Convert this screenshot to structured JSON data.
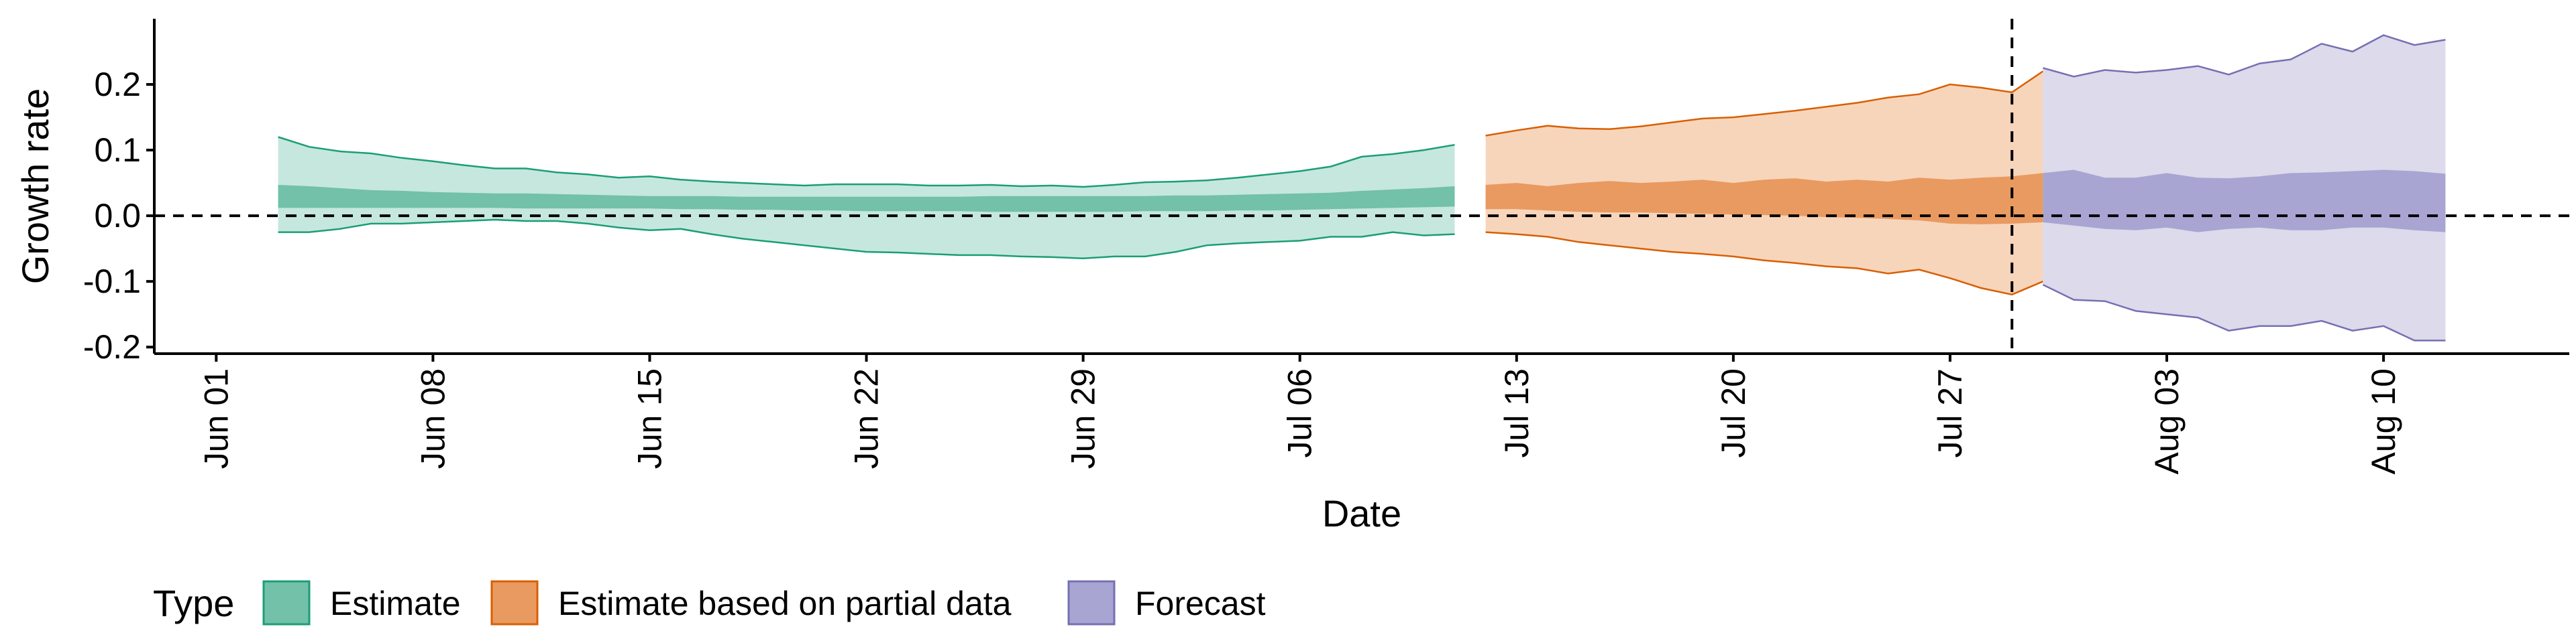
{
  "chart_data": {
    "type": "area",
    "xlabel": "Date",
    "ylabel": "Growth rate",
    "x_ticks": [
      "Jun 01",
      "Jun 08",
      "Jun 15",
      "Jun 22",
      "Jun 29",
      "Jul 06",
      "Jul 13",
      "Jul 20",
      "Jul 27",
      "Aug 03",
      "Aug 10"
    ],
    "y_ticks": [
      "-0.2",
      "-0.1",
      "0.0",
      "0.1",
      "0.2"
    ],
    "xlim": [
      "2020-05-30",
      "2020-08-16"
    ],
    "ylim": [
      -0.21,
      0.3
    ],
    "reference_lines": {
      "horizontal_y": 0.0,
      "vertical_date": "2020-07-29"
    },
    "legend": {
      "title": "Type",
      "position": "bottom-left",
      "items": [
        "Estimate",
        "Estimate based on partial data",
        "Forecast"
      ]
    },
    "colors": {
      "Estimate": {
        "outer": "#c6e7dd",
        "inner": "#72c1a8",
        "line": "#1b9e77"
      },
      "Estimate based on partial data": {
        "outer": "#f7d5bb",
        "inner": "#e99a60",
        "line": "#d95f02"
      },
      "Forecast": {
        "outer": "#dcdaeb",
        "inner": "#a9a5d2",
        "line": "#7570b3"
      }
    },
    "series": [
      {
        "name": "Estimate",
        "start_date": "2020-06-03",
        "outer_upper": [
          0.12,
          0.105,
          0.098,
          0.095,
          0.088,
          0.083,
          0.077,
          0.072,
          0.072,
          0.066,
          0.063,
          0.058,
          0.06,
          0.055,
          0.052,
          0.05,
          0.048,
          0.046,
          0.048,
          0.048,
          0.048,
          0.046,
          0.046,
          0.047,
          0.045,
          0.046,
          0.044,
          0.047,
          0.051,
          0.052,
          0.054,
          0.058,
          0.063,
          0.068,
          0.075,
          0.09,
          0.094,
          0.1,
          0.108
        ],
        "inner_upper": [
          0.047,
          0.045,
          0.042,
          0.039,
          0.038,
          0.036,
          0.035,
          0.034,
          0.034,
          0.033,
          0.032,
          0.031,
          0.03,
          0.03,
          0.03,
          0.029,
          0.029,
          0.029,
          0.029,
          0.029,
          0.029,
          0.029,
          0.029,
          0.03,
          0.03,
          0.03,
          0.03,
          0.03,
          0.03,
          0.031,
          0.031,
          0.032,
          0.033,
          0.034,
          0.035,
          0.038,
          0.04,
          0.042,
          0.045
        ],
        "inner_lower": [
          0.012,
          0.012,
          0.012,
          0.012,
          0.012,
          0.012,
          0.012,
          0.012,
          0.011,
          0.011,
          0.011,
          0.011,
          0.011,
          0.01,
          0.01,
          0.009,
          0.009,
          0.008,
          0.008,
          0.007,
          0.007,
          0.007,
          0.007,
          0.006,
          0.006,
          0.006,
          0.006,
          0.006,
          0.007,
          0.007,
          0.007,
          0.008,
          0.008,
          0.009,
          0.01,
          0.011,
          0.012,
          0.013,
          0.014
        ],
        "outer_lower": [
          -0.025,
          -0.025,
          -0.02,
          -0.012,
          -0.012,
          -0.01,
          -0.008,
          -0.006,
          -0.008,
          -0.008,
          -0.012,
          -0.018,
          -0.022,
          -0.02,
          -0.028,
          -0.035,
          -0.04,
          -0.045,
          -0.05,
          -0.055,
          -0.056,
          -0.058,
          -0.06,
          -0.06,
          -0.062,
          -0.063,
          -0.065,
          -0.062,
          -0.062,
          -0.055,
          -0.045,
          -0.042,
          -0.04,
          -0.038,
          -0.032,
          -0.032,
          -0.025,
          -0.03,
          -0.028
        ]
      },
      {
        "name": "Estimate based on partial data",
        "start_date": "2020-07-12",
        "outer_upper": [
          0.122,
          0.13,
          0.137,
          0.133,
          0.132,
          0.136,
          0.142,
          0.148,
          0.15,
          0.155,
          0.16,
          0.166,
          0.172,
          0.18,
          0.185,
          0.2,
          0.195,
          0.188,
          0.22
        ],
        "inner_upper": [
          0.047,
          0.05,
          0.045,
          0.05,
          0.053,
          0.05,
          0.052,
          0.055,
          0.05,
          0.055,
          0.057,
          0.052,
          0.055,
          0.052,
          0.058,
          0.055,
          0.058,
          0.06,
          0.065
        ],
        "inner_lower": [
          0.01,
          0.01,
          0.008,
          0.006,
          0.005,
          0.005,
          0.004,
          0.003,
          0.002,
          0.001,
          0.0,
          -0.002,
          -0.003,
          -0.005,
          -0.007,
          -0.012,
          -0.013,
          -0.012,
          -0.01
        ],
        "outer_lower": [
          -0.025,
          -0.028,
          -0.032,
          -0.04,
          -0.045,
          -0.05,
          -0.055,
          -0.058,
          -0.062,
          -0.068,
          -0.072,
          -0.077,
          -0.08,
          -0.088,
          -0.082,
          -0.095,
          -0.11,
          -0.12,
          -0.1
        ]
      },
      {
        "name": "Forecast",
        "start_date": "2020-07-30",
        "outer_upper": [
          0.225,
          0.212,
          0.222,
          0.218,
          0.222,
          0.228,
          0.215,
          0.232,
          0.238,
          0.262,
          0.25,
          0.275,
          0.26,
          0.268
        ],
        "inner_upper": [
          0.065,
          0.07,
          0.058,
          0.058,
          0.065,
          0.058,
          0.057,
          0.06,
          0.065,
          0.066,
          0.068,
          0.07,
          0.068,
          0.064
        ],
        "inner_lower": [
          -0.01,
          -0.015,
          -0.02,
          -0.022,
          -0.018,
          -0.025,
          -0.02,
          -0.018,
          -0.022,
          -0.022,
          -0.018,
          -0.018,
          -0.022,
          -0.025
        ],
        "outer_lower": [
          -0.105,
          -0.128,
          -0.13,
          -0.145,
          -0.15,
          -0.155,
          -0.175,
          -0.168,
          -0.168,
          -0.16,
          -0.175,
          -0.168,
          -0.19,
          -0.19
        ]
      }
    ]
  }
}
